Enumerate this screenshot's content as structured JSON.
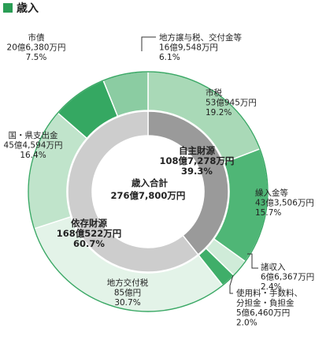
{
  "header": {
    "title": "歳入"
  },
  "chart_data": {
    "type": "pie",
    "total": {
      "label": "歳入合計",
      "value": "276億7,800万円"
    },
    "outer": [
      {
        "name": "市税",
        "value": "53億945万円",
        "pct": 19.2,
        "color": "#a9d9b7"
      },
      {
        "name": "繰入金等",
        "value": "43億3,506万円",
        "pct": 15.7,
        "color": "#4fb676"
      },
      {
        "name": "諸収入",
        "value": "6億6,367万円",
        "pct": 2.4,
        "color": "#cfebd8"
      },
      {
        "name": "使用料・手数料、分担金・負担金",
        "value": "5億6,460万円",
        "pct": 2.0,
        "color": "#3fae69"
      },
      {
        "name": "地方交付税",
        "value": "85億円",
        "pct": 30.7,
        "color": "#e3f3e8"
      },
      {
        "name": "国・県支出金",
        "value": "45億4,594万円",
        "pct": 16.4,
        "color": "#c0e4cb"
      },
      {
        "name": "市債",
        "value": "20億6,380万円",
        "pct": 7.5,
        "color": "#35a862"
      },
      {
        "name": "地方譲与税、交付金等",
        "value": "16億9,548万円",
        "pct": 6.1,
        "color": "#8bcca2"
      }
    ],
    "inner": [
      {
        "name": "自主財源",
        "value": "108億7,278万円",
        "pct": 39.3,
        "color": "#9a9a9a"
      },
      {
        "name": "依存財源",
        "value": "168億522万円",
        "pct": 60.7,
        "color": "#cdcdcd"
      }
    ]
  }
}
